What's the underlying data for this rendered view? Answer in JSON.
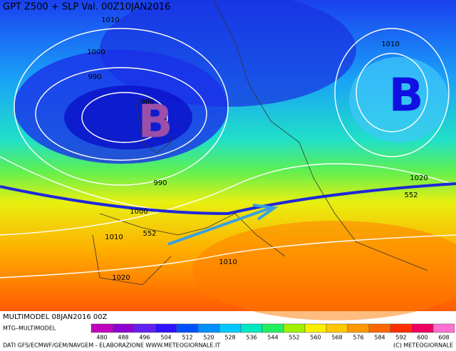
{
  "header": {
    "title": "GPT Z500 + SLP Val. 00Z10JAN2016"
  },
  "isobar_labels": [
    "1010",
    "1000",
    "990",
    "980",
    "990",
    "1000",
    "1010",
    "1020",
    "1010",
    "1010",
    "1020"
  ],
  "geopotential_labels": [
    "552",
    "552"
  ],
  "pressure_centers": [
    "B",
    "B"
  ],
  "footer": {
    "model": "MULTIMODEL 08JAN2016 00Z",
    "source": "MTG–MULTIMODEL",
    "credits": "DATI GFS/ECMWF/GEM/NAVGEM - ELABORAZIONE WWW.METEOGIORNALE.IT",
    "copyright": "(C) METEOGIORNALE"
  },
  "legend": {
    "labels": [
      "480",
      "488",
      "496",
      "504",
      "512",
      "520",
      "528",
      "536",
      "544",
      "552",
      "560",
      "568",
      "576",
      "584",
      "592",
      "600",
      "608"
    ],
    "colors": [
      "#c000c0",
      "#9000d0",
      "#6020f0",
      "#3010ff",
      "#0050ff",
      "#0090ff",
      "#00c8ff",
      "#00e8c0",
      "#20f060",
      "#a0f000",
      "#f8f000",
      "#ffc800",
      "#ff9800",
      "#ff6800",
      "#ff3000",
      "#f00060",
      "#ff70d0"
    ]
  }
}
